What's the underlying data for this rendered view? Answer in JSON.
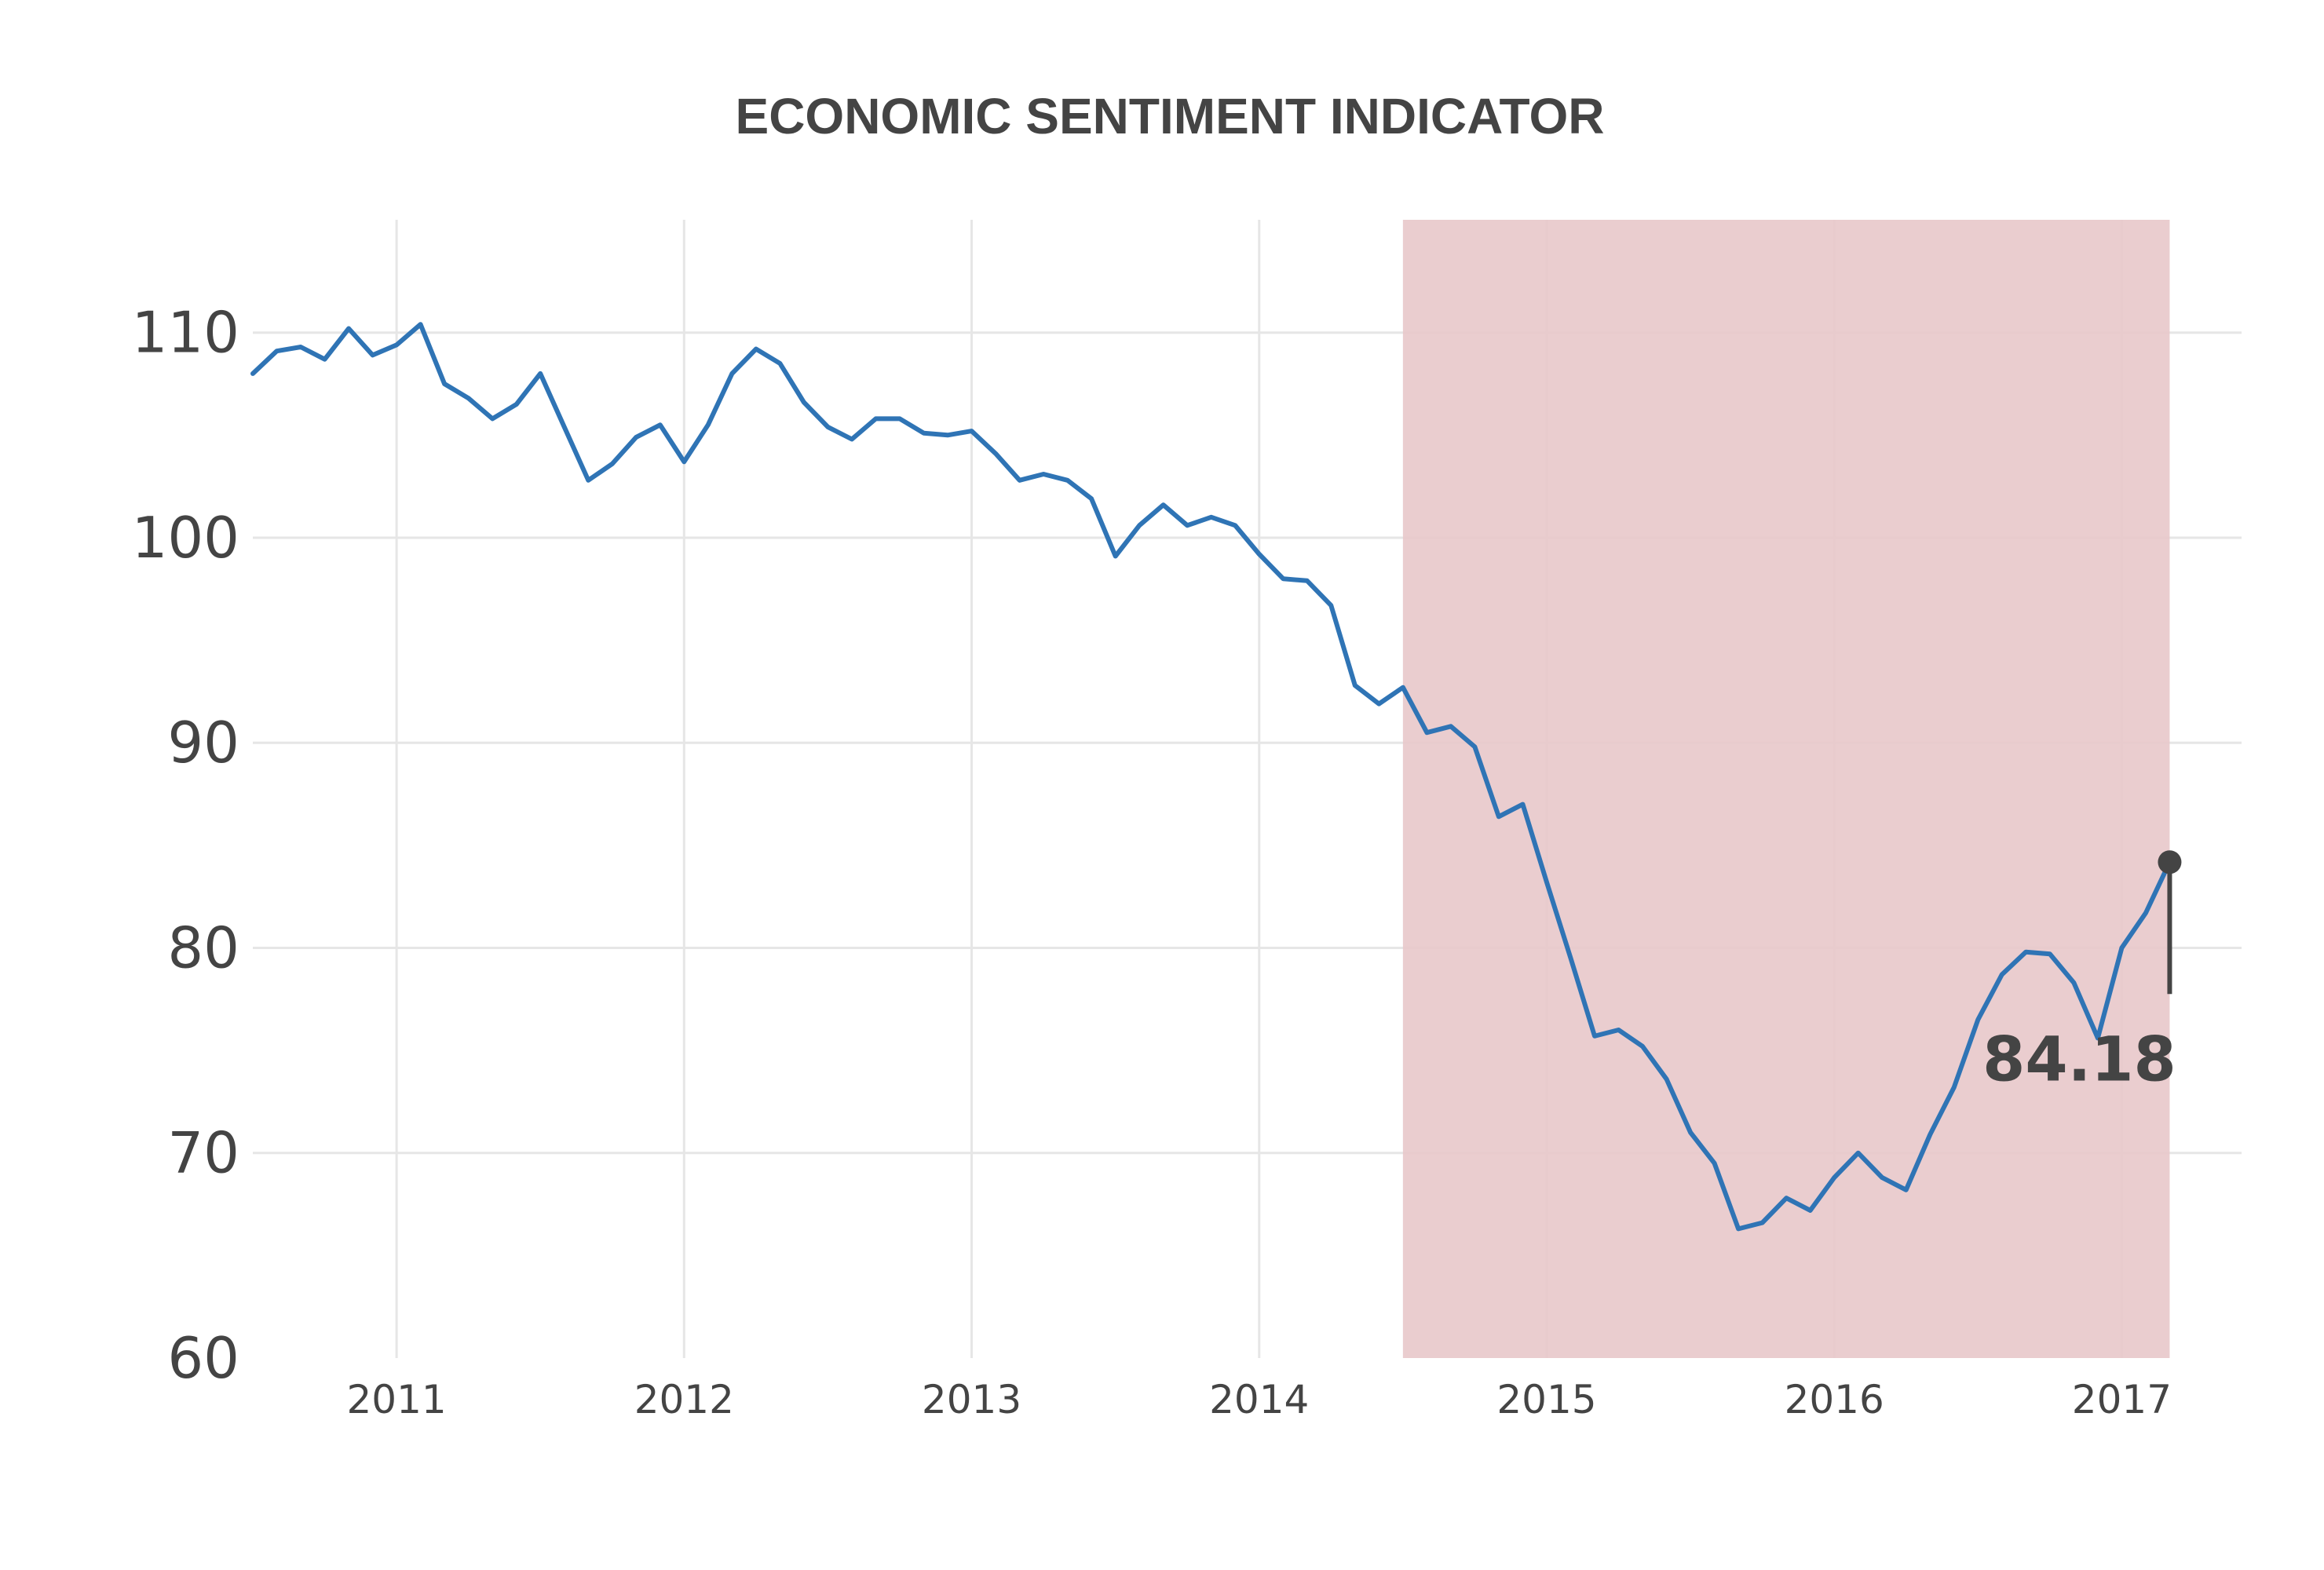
{
  "chart_data": {
    "type": "line",
    "title": "ECONOMIC SENTIMENT INDICATOR",
    "xlabel": "",
    "ylabel": "",
    "ylim": [
      60,
      115.5
    ],
    "xlim": [
      "2010-07",
      "2017-06"
    ],
    "y_ticks": [
      "60",
      "70",
      "80",
      "90",
      "100",
      "110"
    ],
    "x_ticks": [
      "2011",
      "2012",
      "2013",
      "2014",
      "2015",
      "2016",
      "2017"
    ],
    "grid": true,
    "shaded_region": {
      "start": "2014-07",
      "end": "2017-03",
      "color": "#e8c8ca"
    },
    "annotation": {
      "text": "84.18",
      "x": "2017-03",
      "y": 84.18
    },
    "series": [
      {
        "color": "#2f74b5",
        "dates": [
          "2010-07",
          "2010-08",
          "2010-09",
          "2010-10",
          "2010-11",
          "2010-12",
          "2011-01",
          "2011-02",
          "2011-03",
          "2011-04",
          "2011-05",
          "2011-06",
          "2011-07",
          "2011-08",
          "2011-09",
          "2011-10",
          "2011-11",
          "2011-12",
          "2012-01",
          "2012-02",
          "2012-03",
          "2012-04",
          "2012-05",
          "2012-06",
          "2012-07",
          "2012-08",
          "2012-09",
          "2012-10",
          "2012-11",
          "2012-12",
          "2013-01",
          "2013-02",
          "2013-03",
          "2013-04",
          "2013-05",
          "2013-06",
          "2013-07",
          "2013-08",
          "2013-09",
          "2013-10",
          "2013-11",
          "2013-12",
          "2014-01",
          "2014-02",
          "2014-03",
          "2014-04",
          "2014-05",
          "2014-06",
          "2014-07",
          "2014-08",
          "2014-09",
          "2014-10",
          "2014-11",
          "2014-12",
          "2015-01",
          "2015-02",
          "2015-03",
          "2015-04",
          "2015-05",
          "2015-06",
          "2015-07",
          "2015-08",
          "2015-09",
          "2015-10",
          "2015-11",
          "2015-12",
          "2016-01",
          "2016-02",
          "2016-03",
          "2016-04",
          "2016-05",
          "2016-06",
          "2016-07",
          "2016-08",
          "2016-09",
          "2016-10",
          "2016-11",
          "2016-12",
          "2017-01",
          "2017-02",
          "2017-03"
        ],
        "values": [
          108.0,
          109.1,
          109.3,
          108.7,
          110.2,
          108.9,
          109.4,
          110.4,
          107.5,
          106.8,
          105.8,
          106.5,
          108.0,
          105.4,
          102.8,
          103.6,
          104.9,
          105.5,
          103.7,
          105.5,
          108.0,
          109.2,
          108.5,
          106.6,
          105.4,
          104.8,
          105.8,
          105.8,
          105.1,
          105.0,
          105.2,
          104.1,
          102.8,
          103.1,
          102.8,
          101.9,
          99.1,
          100.6,
          101.6,
          100.6,
          101.0,
          100.6,
          99.2,
          98.0,
          97.9,
          96.7,
          92.8,
          91.9,
          92.7,
          90.5,
          90.8,
          89.8,
          86.4,
          87.0,
          83.2,
          79.5,
          75.7,
          76.0,
          75.2,
          73.6,
          71.0,
          69.5,
          66.3,
          66.6,
          67.8,
          67.2,
          68.8,
          70.0,
          68.8,
          68.2,
          70.9,
          73.2,
          76.5,
          78.7,
          79.8,
          79.7,
          78.3,
          75.6,
          80.0,
          81.7,
          84.18
        ]
      }
    ]
  }
}
